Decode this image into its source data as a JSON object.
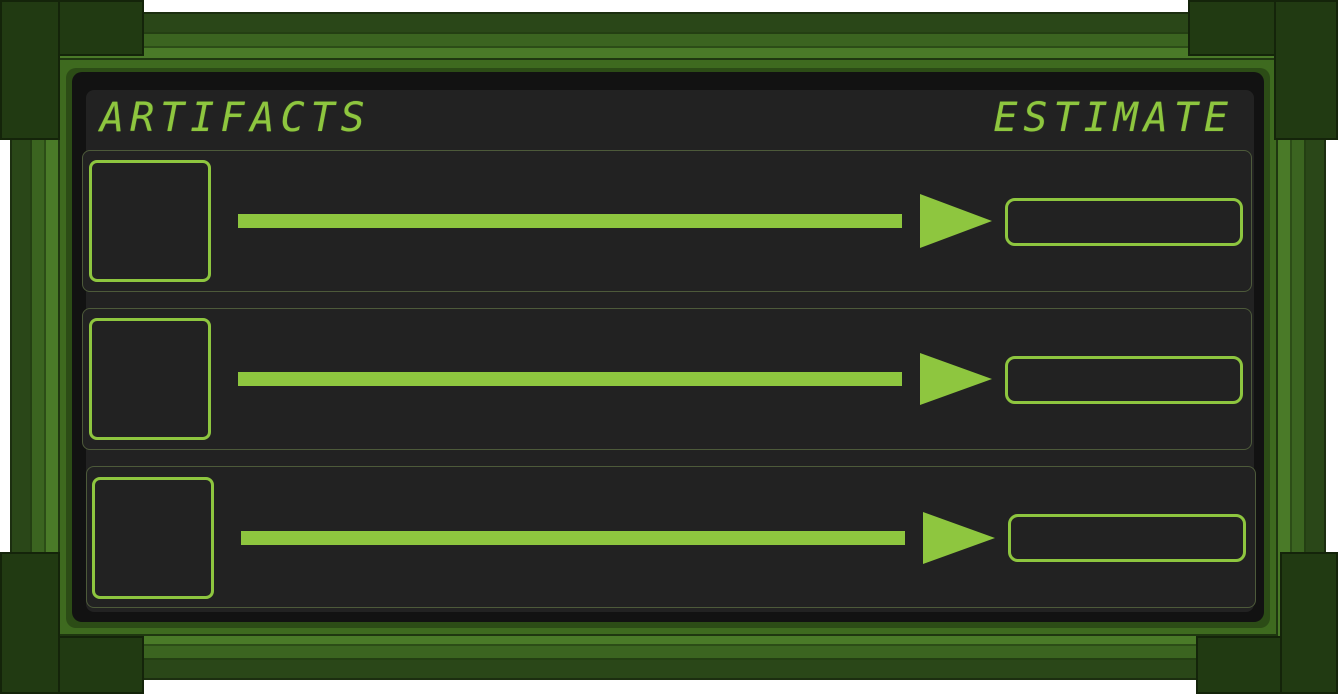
{
  "panel": {
    "artifacts_label": "ARTIFACTS",
    "estimate_label": "ESTIMATE"
  },
  "rows": [
    {
      "slot": "",
      "estimate": ""
    },
    {
      "slot": "",
      "estimate": ""
    },
    {
      "slot": "",
      "estimate": ""
    }
  ],
  "colors": {
    "accent": "#8ec63f",
    "screen": "#222222",
    "frame": "#3b6420"
  }
}
